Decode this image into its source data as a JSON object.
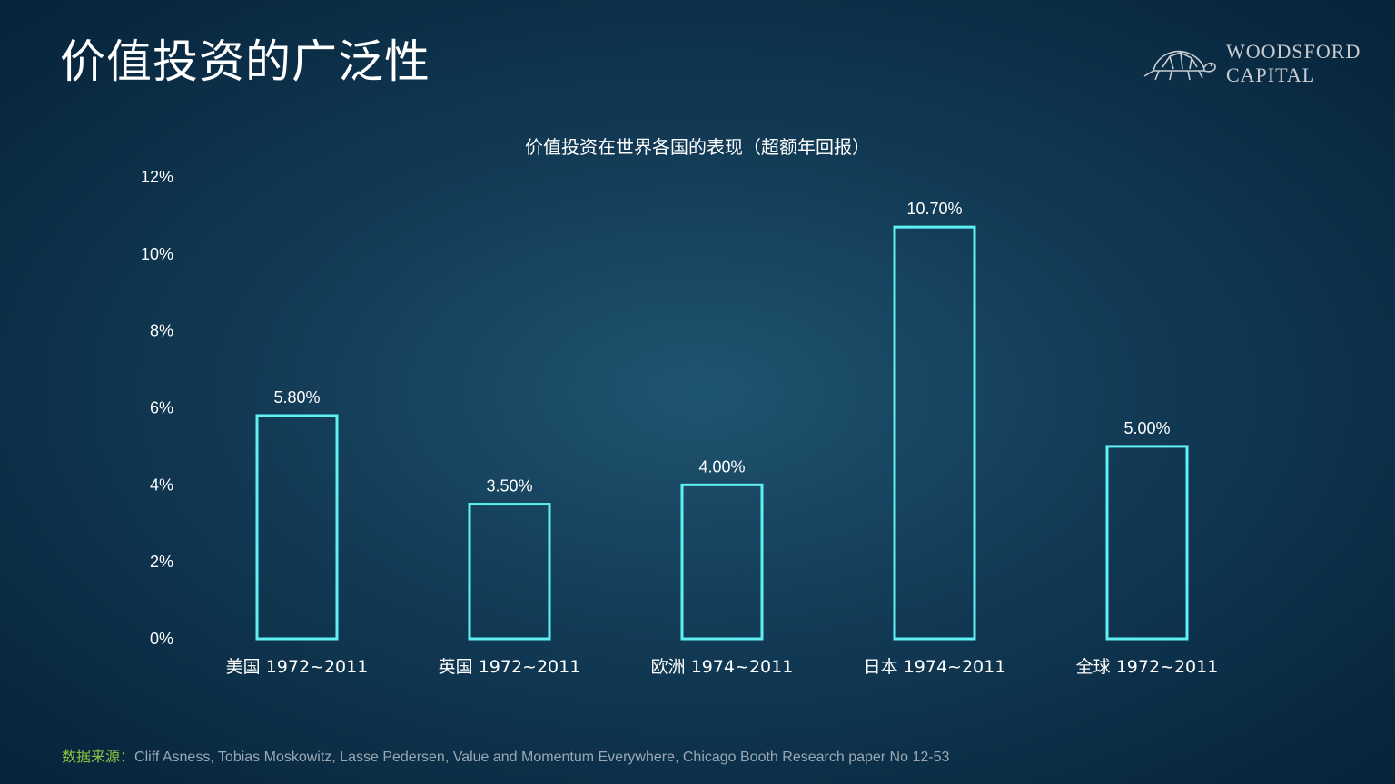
{
  "page_title": "价值投资的广泛性",
  "logo": {
    "line1": "WOODSFORD",
    "line2": "CAPITAL",
    "icon": "tortoise-icon"
  },
  "source": {
    "label": "数据来源：",
    "text": "Cliff Asness, Tobias Moskowitz, Lasse Pedersen, Value and Momentum Everywhere, Chicago Booth Research paper No 12-53"
  },
  "colors": {
    "bar_outline": "#5ff0f4",
    "source_label": "#8cc63f"
  },
  "chart_data": {
    "type": "bar",
    "title": "价值投资在世界各国的表现（超额年回报）",
    "categories": [
      "美国 1972~2011",
      "英国 1972~2011",
      "欧洲 1974~2011",
      "日本 1974~2011",
      "全球 1972~2011"
    ],
    "values": [
      5.8,
      3.5,
      4.0,
      10.7,
      5.0
    ],
    "data_labels": [
      "5.80%",
      "3.50%",
      "4.00%",
      "10.70%",
      "5.00%"
    ],
    "y_ticks": [
      "0%",
      "2%",
      "4%",
      "6%",
      "8%",
      "10%",
      "12%"
    ],
    "ylim": [
      0,
      12
    ],
    "grid": false,
    "legend": "none",
    "bar_style": "outline"
  }
}
